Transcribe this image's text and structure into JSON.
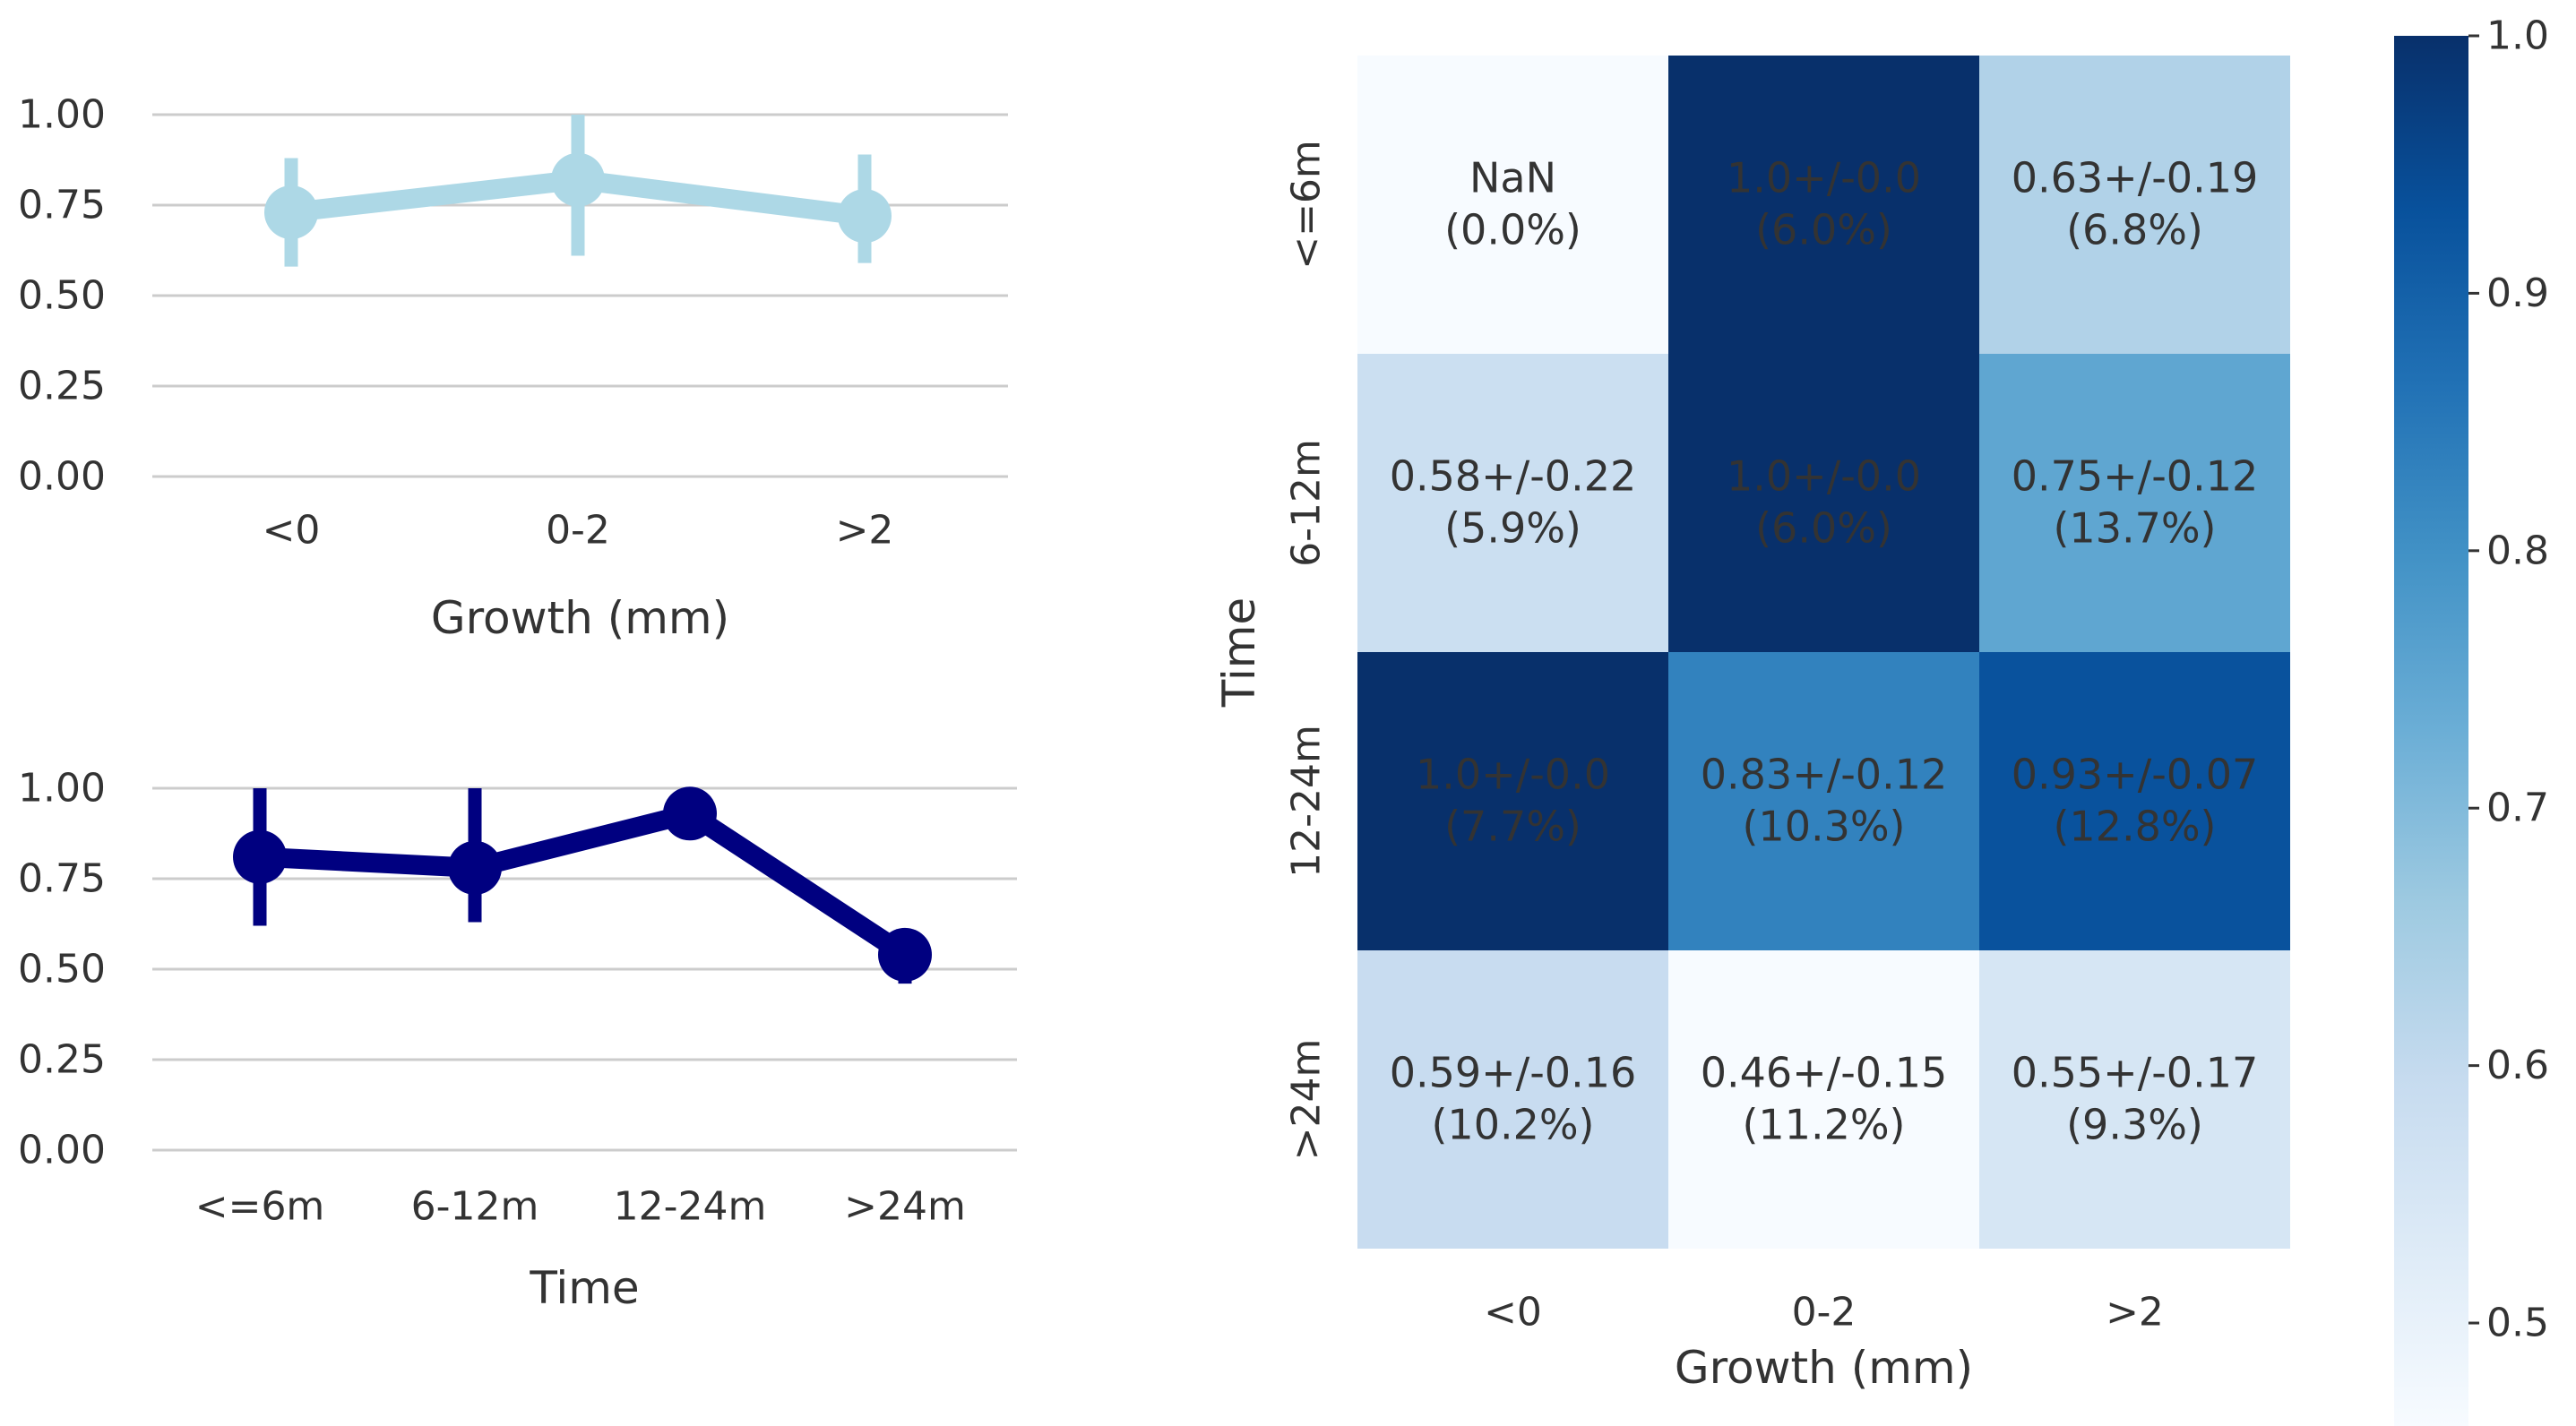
{
  "chart_data": [
    {
      "type": "line",
      "title": "",
      "xlabel": "Growth (mm)",
      "ylabel": "",
      "categories": [
        "<0",
        "0-2",
        ">2"
      ],
      "series": [
        {
          "name": "Growth",
          "color": "#add8e6",
          "values": [
            0.73,
            0.82,
            0.72
          ],
          "err_low": [
            0.58,
            0.61,
            0.59
          ],
          "err_high": [
            0.88,
            1.0,
            0.89
          ]
        }
      ],
      "ylim": [
        0,
        1
      ],
      "yticks": [
        0.0,
        0.25,
        0.5,
        0.75,
        1.0
      ],
      "ytick_labels": [
        "0.00",
        "0.25",
        "0.50",
        "0.75",
        "1.00"
      ],
      "grid": true
    },
    {
      "type": "line",
      "title": "",
      "xlabel": "Time",
      "ylabel": "",
      "categories": [
        "<=6m",
        "6-12m",
        "12-24m",
        ">24m"
      ],
      "series": [
        {
          "name": "Time",
          "color": "#000080",
          "values": [
            0.81,
            0.78,
            0.93,
            0.54
          ],
          "err_low": [
            0.62,
            0.63,
            0.86,
            0.46
          ],
          "err_high": [
            1.0,
            1.0,
            1.0,
            0.61
          ]
        }
      ],
      "ylim": [
        0,
        1
      ],
      "yticks": [
        0.0,
        0.25,
        0.5,
        0.75,
        1.0
      ],
      "ytick_labels": [
        "0.00",
        "0.25",
        "0.50",
        "0.75",
        "1.00"
      ],
      "grid": true
    },
    {
      "type": "heatmap",
      "title": "",
      "xlabel": "Growth (mm)",
      "ylabel": "Time",
      "x_categories": [
        "<0",
        "0-2",
        ">2"
      ],
      "y_categories": [
        "<=6m",
        "6-12m",
        "12-24m",
        ">24m"
      ],
      "values": [
        [
          null,
          1.0,
          0.63
        ],
        [
          0.58,
          1.0,
          0.75
        ],
        [
          1.0,
          0.83,
          0.93
        ],
        [
          0.59,
          0.46,
          0.55
        ]
      ],
      "cell_labels": [
        [
          "NaN\n(0.0%)",
          "1.0+/-0.0\n(6.0%)",
          "0.63+/-0.19\n(6.8%)"
        ],
        [
          "0.58+/-0.22\n(5.9%)",
          "1.0+/-0.0\n(6.0%)",
          "0.75+/-0.12\n(13.7%)"
        ],
        [
          "1.0+/-0.0\n(7.7%)",
          "0.83+/-0.12\n(10.3%)",
          "0.93+/-0.07\n(12.8%)"
        ],
        [
          "0.59+/-0.16\n(10.2%)",
          "0.46+/-0.15\n(11.2%)",
          "0.55+/-0.17\n(9.3%)"
        ]
      ],
      "colormap": "Blues",
      "vmin": 0.46,
      "vmax": 1.0,
      "colorbar_ticks": [
        1.0,
        0.9,
        0.8,
        0.7,
        0.6,
        0.5
      ],
      "colorbar_tick_labels": [
        "1.0",
        "0.9",
        "0.8",
        "0.7",
        "0.6",
        "0.5"
      ]
    }
  ]
}
